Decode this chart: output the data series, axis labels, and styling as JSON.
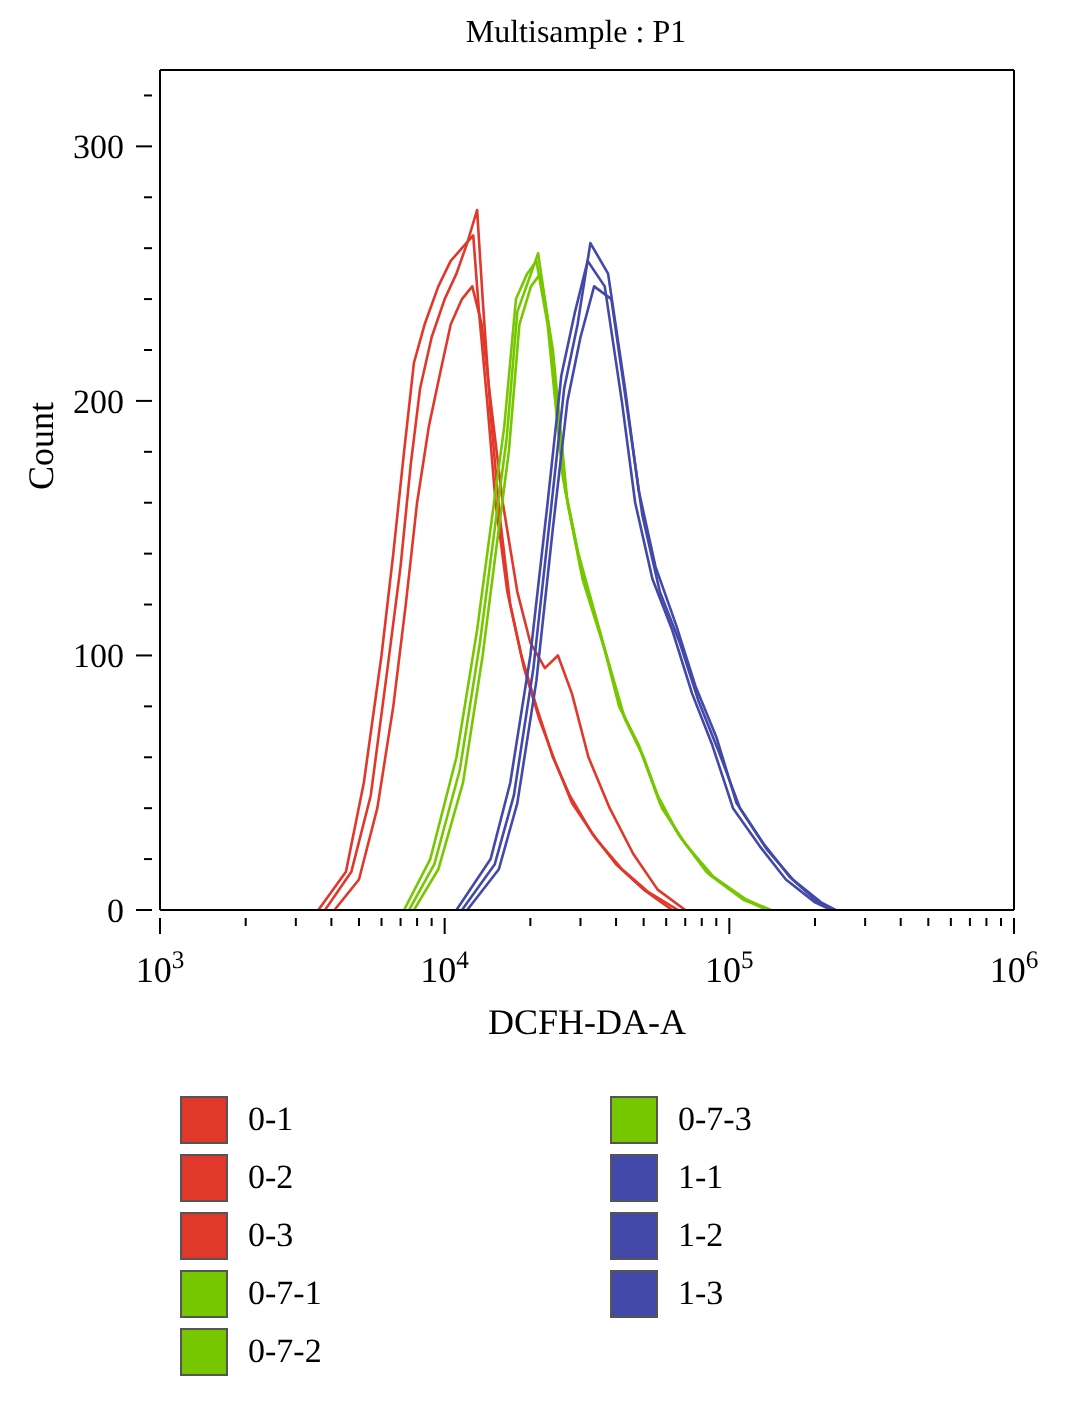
{
  "chart_data": {
    "type": "line",
    "title": "Multisample : P1",
    "xlabel": "DCFH-DA-A",
    "ylabel": "Count",
    "log": "x",
    "legend": "bottom",
    "marker": "none",
    "line_style": "solid",
    "xlim": [
      1000,
      1000000
    ],
    "ylim": [
      0,
      330
    ],
    "xticks": [
      {
        "value": 1000,
        "label": "10$^{3}$"
      },
      {
        "value": 2000,
        "label": null
      },
      {
        "value": 3000,
        "label": null
      },
      {
        "value": 4000,
        "label": null
      },
      {
        "value": 5000,
        "label": null
      },
      {
        "value": 6000,
        "label": null
      },
      {
        "value": 7000,
        "label": null
      },
      {
        "value": 8000,
        "label": null
      },
      {
        "value": 9000,
        "label": null
      },
      {
        "value": 10000,
        "label": "10$^{4}$"
      },
      {
        "value": 20000,
        "label": null
      },
      {
        "value": 30000,
        "label": null
      },
      {
        "value": 40000,
        "label": null
      },
      {
        "value": 50000,
        "label": null
      },
      {
        "value": 60000,
        "label": null
      },
      {
        "value": 70000,
        "label": null
      },
      {
        "value": 80000,
        "label": null
      },
      {
        "value": 90000,
        "label": null
      },
      {
        "value": 100000,
        "label": "10$^{5}$"
      },
      {
        "value": 200000,
        "label": null
      },
      {
        "value": 300000,
        "label": null
      },
      {
        "value": 400000,
        "label": null
      },
      {
        "value": 500000,
        "label": null
      },
      {
        "value": 600000,
        "label": null
      },
      {
        "value": 700000,
        "label": null
      },
      {
        "value": 800000,
        "label": null
      },
      {
        "value": 900000,
        "label": null
      },
      {
        "value": 1000000,
        "label": "10$^{6}$"
      }
    ],
    "yticks": [
      0,
      {
        "value": 20,
        "label": null
      },
      {
        "value": 40,
        "label": null
      },
      {
        "value": 60,
        "label": null
      },
      {
        "value": 80,
        "label": null
      },
      100,
      {
        "value": 120,
        "label": null
      },
      {
        "value": 140,
        "label": null
      },
      {
        "value": 160,
        "label": null
      },
      {
        "value": 180,
        "label": null
      },
      200,
      {
        "value": 220,
        "label": null
      },
      {
        "value": 240,
        "label": null
      },
      {
        "value": 260,
        "label": null
      },
      {
        "value": 280,
        "label": null
      },
      300,
      {
        "value": 320,
        "label": null
      }
    ],
    "series": [
      {
        "name": "0-1",
        "color": "#e0382a",
        "x": [
          3600,
          4500,
          5200,
          6000,
          6600,
          7200,
          7800,
          8500,
          9500,
          10500,
          11500,
          12600,
          13200,
          14100,
          15100,
          16600,
          18600,
          21000,
          24000,
          27500,
          33000,
          40000,
          50000,
          63000
        ],
        "values": [
          0,
          15,
          50,
          100,
          140,
          180,
          215,
          230,
          245,
          255,
          260,
          265,
          235,
          200,
          160,
          125,
          100,
          80,
          60,
          45,
          30,
          18,
          8,
          0
        ]
      },
      {
        "name": "0-2",
        "color": "#e0382a",
        "x": [
          3800,
          4700,
          5500,
          6300,
          7000,
          7600,
          8200,
          9000,
          10000,
          11000,
          12000,
          13000,
          13600,
          14500,
          15600,
          17000,
          19000,
          21500,
          24500,
          28000,
          34000,
          42000,
          52000,
          66000
        ],
        "values": [
          0,
          15,
          45,
          95,
          135,
          175,
          205,
          225,
          240,
          250,
          262,
          275,
          240,
          195,
          155,
          120,
          95,
          75,
          58,
          42,
          28,
          16,
          7,
          0
        ]
      },
      {
        "name": "0-3",
        "color": "#e0382a",
        "x": [
          4100,
          5000,
          5800,
          6600,
          7300,
          8000,
          8800,
          9600,
          10500,
          11500,
          12500,
          13500,
          14500,
          16000,
          18000,
          20000,
          22500,
          25000,
          28000,
          32000,
          38000,
          46000,
          56000,
          70000
        ],
        "values": [
          0,
          12,
          40,
          80,
          120,
          160,
          190,
          210,
          230,
          240,
          245,
          230,
          200,
          160,
          125,
          105,
          95,
          100,
          85,
          60,
          40,
          22,
          8,
          0
        ]
      },
      {
        "name": "0-7-1",
        "color": "#77c700",
        "x": [
          7200,
          8900,
          11000,
          13000,
          14500,
          16200,
          17800,
          19500,
          21000,
          23000,
          26000,
          29500,
          35000,
          41000,
          48000,
          56000,
          66000,
          83000,
          110000,
          135000
        ],
        "values": [
          0,
          20,
          60,
          110,
          150,
          190,
          240,
          250,
          255,
          230,
          170,
          140,
          110,
          80,
          65,
          45,
          30,
          15,
          5,
          0
        ]
      },
      {
        "name": "0-7-2",
        "color": "#77c700",
        "x": [
          7500,
          9200,
          11300,
          13300,
          14800,
          16500,
          18000,
          19800,
          21300,
          23500,
          26500,
          30000,
          36000,
          42000,
          49000,
          57000,
          68000,
          85000,
          112000,
          138000
        ],
        "values": [
          0,
          18,
          55,
          105,
          145,
          185,
          235,
          248,
          258,
          225,
          165,
          135,
          105,
          78,
          62,
          42,
          28,
          14,
          4,
          0
        ]
      },
      {
        "name": "0-7-3",
        "color": "#77c700",
        "x": [
          7800,
          9500,
          11600,
          13600,
          15100,
          16800,
          18300,
          20100,
          21700,
          24000,
          27000,
          30500,
          37000,
          43000,
          50000,
          58000,
          70000,
          88000,
          115000,
          140000
        ],
        "values": [
          0,
          16,
          50,
          100,
          140,
          180,
          230,
          245,
          250,
          220,
          160,
          130,
          100,
          75,
          60,
          40,
          26,
          13,
          4,
          0
        ]
      },
      {
        "name": "1-1",
        "color": "#4349a8",
        "x": [
          11000,
          14500,
          17000,
          20000,
          23000,
          25700,
          28700,
          31800,
          36500,
          41900,
          46700,
          53700,
          63000,
          74000,
          87000,
          103000,
          128000,
          158000,
          200000,
          228000
        ],
        "values": [
          0,
          20,
          50,
          100,
          160,
          210,
          235,
          255,
          245,
          200,
          160,
          130,
          110,
          85,
          65,
          40,
          25,
          12,
          3,
          0
        ]
      },
      {
        "name": "1-2",
        "color": "#4349a8",
        "x": [
          11500,
          15000,
          17500,
          20500,
          23500,
          26300,
          29300,
          32500,
          37500,
          43000,
          48000,
          55000,
          65000,
          76000,
          90000,
          106000,
          132000,
          163000,
          205000,
          232000
        ],
        "values": [
          0,
          18,
          45,
          95,
          155,
          205,
          230,
          262,
          250,
          205,
          165,
          135,
          112,
          88,
          68,
          42,
          26,
          13,
          3,
          0
        ]
      },
      {
        "name": "1-3",
        "color": "#4349a8",
        "x": [
          12000,
          15500,
          18000,
          21000,
          24000,
          27000,
          30000,
          33500,
          38500,
          44000,
          49500,
          57000,
          67000,
          78000,
          92000,
          109000,
          135000,
          167000,
          210000,
          236000
        ],
        "values": [
          0,
          16,
          42,
          90,
          150,
          200,
          225,
          245,
          240,
          195,
          155,
          125,
          105,
          82,
          62,
          40,
          24,
          12,
          3,
          0
        ]
      }
    ]
  }
}
